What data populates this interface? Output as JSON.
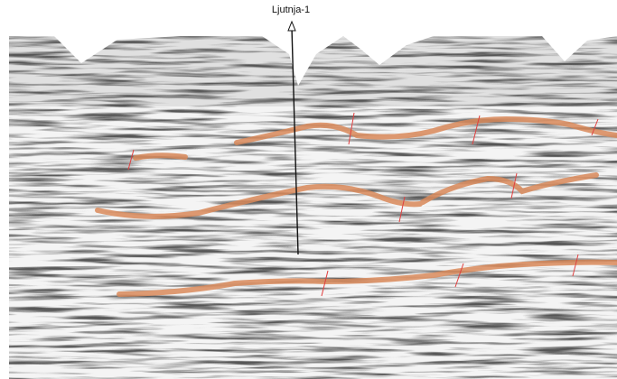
{
  "well": {
    "label": "Ljutnja-1"
  }
}
